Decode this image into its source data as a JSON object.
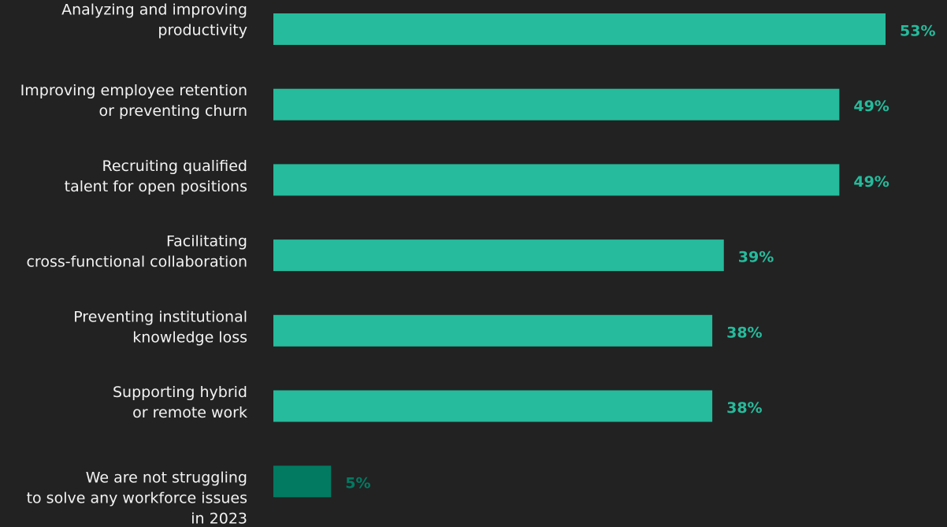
{
  "chart_data": {
    "type": "bar",
    "orientation": "horizontal",
    "categories": [
      [
        "Analyzing and improving",
        "productivity"
      ],
      [
        "Improving employee retention",
        "or preventing churn"
      ],
      [
        "Recruiting qualified",
        "talent for open positions"
      ],
      [
        "Facilitating",
        "cross-functional collaboration"
      ],
      [
        "Preventing institutional",
        "knowledge loss"
      ],
      [
        "Supporting hybrid",
        "or remote work"
      ],
      [
        "We are not struggling",
        "to solve any workforce issues",
        "in 2023"
      ]
    ],
    "values": [
      53,
      49,
      49,
      39,
      38,
      38,
      5
    ],
    "value_labels": [
      "53%",
      "49%",
      "49%",
      "39%",
      "38%",
      "38%",
      "5%"
    ],
    "colors": [
      "#25bb9c",
      "#25bb9c",
      "#25bb9c",
      "#25bb9c",
      "#25bb9c",
      "#25bb9c",
      "#027a62"
    ]
  }
}
